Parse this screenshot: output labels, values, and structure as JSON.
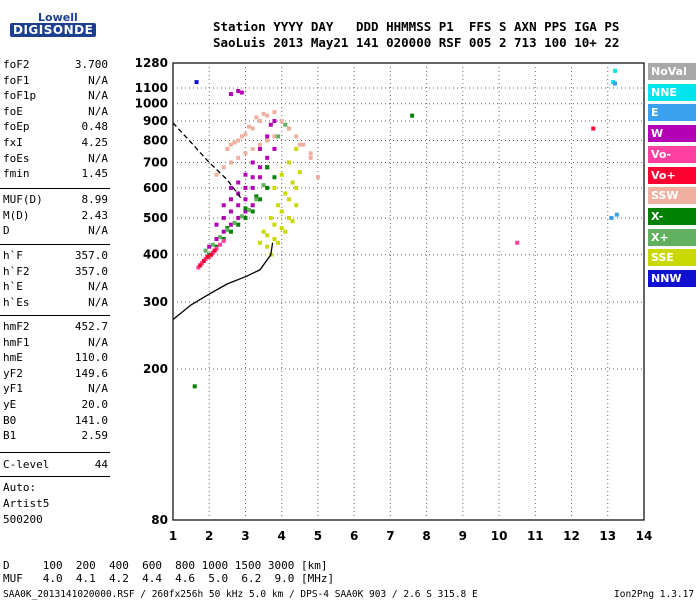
{
  "logo": {
    "line1": "Lowell",
    "line2": "DIGISONDE"
  },
  "header": {
    "line1": "Station YYYY DAY   DDD HHMMSS P1  FFS S AXN PPS IGA PS",
    "line2": "SaoLuis 2013 May21 141 020000 RSF 005 2 713 100 10+ 22"
  },
  "params_group1": [
    {
      "name": "foF2",
      "value": "3.700"
    },
    {
      "name": "foF1",
      "value": "N/A"
    },
    {
      "name": "foF1p",
      "value": "N/A"
    },
    {
      "name": "foE",
      "value": "N/A"
    },
    {
      "name": "foEp",
      "value": "0.48"
    },
    {
      "name": "fxI",
      "value": "4.25"
    },
    {
      "name": "foEs",
      "value": "N/A"
    },
    {
      "name": "fmin",
      "value": "1.45"
    }
  ],
  "params_group2": [
    {
      "name": "MUF(D)",
      "value": "8.99"
    },
    {
      "name": "M(D)",
      "value": "2.43"
    },
    {
      "name": "D",
      "value": "N/A"
    }
  ],
  "params_group3": [
    {
      "name": "h`F",
      "value": "357.0"
    },
    {
      "name": "h`F2",
      "value": "357.0"
    },
    {
      "name": "h`E",
      "value": "N/A"
    },
    {
      "name": "h`Es",
      "value": "N/A"
    }
  ],
  "params_group4": [
    {
      "name": "hmF2",
      "value": "452.7"
    },
    {
      "name": "hmF1",
      "value": "N/A"
    },
    {
      "name": "hmE",
      "value": "110.0"
    },
    {
      "name": "yF2",
      "value": "149.6"
    },
    {
      "name": "yF1",
      "value": "N/A"
    },
    {
      "name": "yE",
      "value": "20.0"
    },
    {
      "name": "B0",
      "value": "141.0"
    },
    {
      "name": "B1",
      "value": "2.59"
    }
  ],
  "params_group5": [
    {
      "name": "C-level",
      "value": "44"
    }
  ],
  "autoscaling": {
    "line1": "Auto:",
    "line2": "Artist5",
    "line3": "500200"
  },
  "legend": [
    {
      "label": "NoVal",
      "color": "#a8a8a8"
    },
    {
      "label": "NNE",
      "color": "#00e5ee"
    },
    {
      "label": "E",
      "color": "#3aa0f0"
    },
    {
      "label": "W",
      "color": "#b400b4"
    },
    {
      "label": "Vo-",
      "color": "#ff40a0"
    },
    {
      "label": "Vo+",
      "color": "#ff0030"
    },
    {
      "label": "SSW",
      "color": "#f0b0a0"
    },
    {
      "label": "X-",
      "color": "#008000"
    },
    {
      "label": "X+",
      "color": "#60b060"
    },
    {
      "label": "SSE",
      "color": "#c8d800"
    },
    {
      "label": "NNW",
      "color": "#1010d0"
    }
  ],
  "chart_data": {
    "type": "scatter",
    "title": "",
    "xlabel": "",
    "ylabel": "",
    "xlim": [
      1,
      14
    ],
    "ylim": [
      80,
      1280
    ],
    "x_ticks": [
      1,
      2,
      3,
      4,
      5,
      6,
      7,
      8,
      9,
      10,
      11,
      12,
      13,
      14
    ],
    "y_ticks": [
      80,
      200,
      300,
      400,
      500,
      600,
      700,
      800,
      900,
      1000,
      1100,
      1280
    ],
    "scale": "log",
    "curves": [
      {
        "name": "profile",
        "style": "solid",
        "points": [
          [
            1,
            270
          ],
          [
            1.5,
            295
          ],
          [
            2,
            315
          ],
          [
            2.5,
            335
          ],
          [
            3,
            350
          ],
          [
            3.4,
            365
          ],
          [
            3.7,
            400
          ],
          [
            3.75,
            430
          ]
        ]
      },
      {
        "name": "MUF",
        "style": "dashed",
        "points": [
          [
            1,
            890
          ],
          [
            1.5,
            790
          ],
          [
            2,
            700
          ],
          [
            2.5,
            630
          ],
          [
            2.9,
            560
          ]
        ]
      }
    ],
    "traces": [
      {
        "series": "SSW",
        "x": [
          2.6,
          2.8,
          3.0,
          3.2,
          3.4,
          3.6,
          3.8,
          4.0,
          4.2,
          4.4,
          4.6,
          4.8,
          2.5,
          2.7,
          2.9,
          3.1,
          3.3,
          3.5,
          2.2,
          2.4,
          2.6,
          2.8,
          3.0,
          3.2,
          3.4,
          3.6,
          3.8,
          4.2,
          4.5,
          4.8,
          5.0
        ],
        "y": [
          780,
          800,
          830,
          860,
          900,
          930,
          950,
          900,
          860,
          820,
          780,
          740,
          760,
          790,
          820,
          870,
          920,
          940,
          650,
          680,
          700,
          720,
          740,
          760,
          780,
          800,
          820,
          860,
          780,
          720,
          640
        ]
      },
      {
        "series": "W",
        "x": [
          2.6,
          2.8,
          3.0,
          3.2,
          3.4,
          3.6,
          3.7,
          3.8,
          2.4,
          2.6,
          2.8,
          3.0,
          3.2,
          3.4,
          3.6,
          3.8,
          2.2,
          2.4,
          2.6,
          2.8,
          3.0,
          3.2,
          3.4,
          3.6,
          2.0,
          2.2,
          2.4,
          2.6,
          2.8,
          3.0,
          3.2,
          2.6,
          2.8,
          2.9
        ],
        "y": [
          600,
          620,
          650,
          700,
          760,
          820,
          880,
          900,
          540,
          560,
          580,
          600,
          640,
          680,
          720,
          760,
          480,
          500,
          520,
          540,
          560,
          600,
          640,
          680,
          420,
          440,
          460,
          480,
          500,
          520,
          540,
          1060,
          1080,
          1070
        ]
      },
      {
        "series": "SSE",
        "x": [
          3.4,
          3.6,
          3.8,
          4.0,
          4.2,
          4.4,
          3.5,
          3.7,
          3.9,
          4.1,
          4.3,
          4.5,
          3.6,
          3.8,
          4.0,
          4.2,
          4.4,
          3.7,
          3.9,
          4.1,
          4.3,
          3.8,
          4.0,
          4.2,
          4.4
        ],
        "y": [
          430,
          450,
          480,
          520,
          560,
          600,
          460,
          500,
          540,
          580,
          620,
          660,
          420,
          440,
          470,
          500,
          540,
          400,
          430,
          460,
          490,
          600,
          650,
          700,
          760
        ]
      },
      {
        "series": "X-",
        "x": [
          2.0,
          2.2,
          2.4,
          2.6,
          2.8,
          3.0,
          3.2,
          3.4,
          3.6,
          3.8,
          2.5,
          3.0,
          3.3,
          3.6,
          1.6,
          7.6
        ],
        "y": [
          400,
          420,
          440,
          460,
          480,
          500,
          520,
          560,
          600,
          640,
          470,
          530,
          570,
          680,
          180,
          930
        ]
      },
      {
        "series": "X+",
        "x": [
          1.9,
          2.1,
          2.3,
          2.5,
          2.7,
          2.9,
          3.1,
          3.3,
          3.5,
          3.9,
          4.1
        ],
        "y": [
          410,
          425,
          445,
          465,
          485,
          505,
          525,
          560,
          610,
          820,
          880
        ]
      },
      {
        "series": "Vo-",
        "x": [
          1.7,
          1.8,
          1.9,
          2.0,
          2.1,
          2.2,
          2.3,
          2.4,
          10.5
        ],
        "y": [
          370,
          380,
          390,
          395,
          405,
          415,
          425,
          435,
          430
        ]
      },
      {
        "series": "Vo+",
        "x": [
          1.75,
          1.85,
          1.95,
          2.05,
          2.15,
          12.6
        ],
        "y": [
          375,
          385,
          395,
          400,
          410,
          860
        ]
      },
      {
        "series": "NNE",
        "x": [
          13.2,
          13.15
        ],
        "y": [
          1220,
          1140
        ]
      },
      {
        "series": "E",
        "x": [
          13.2,
          13.25,
          13.1
        ],
        "y": [
          1130,
          510,
          500
        ]
      },
      {
        "series": "NNW",
        "x": [
          1.65
        ],
        "y": [
          1140
        ]
      }
    ]
  },
  "footer": {
    "line1": "D     100  200  400  600  800 1000 1500 3000 [km]",
    "line2": "MUF   4.0  4.1  4.2  4.4  4.6  5.0  6.2  9.0 [MHz]",
    "line3": "SAA0K_2013141020000.RSF / 260fx256h 50 kHz 5.0 km / DPS-4 SAA0K 903 / 2.6 S 315.8 E",
    "version": "Ion2Png 1.3.17"
  }
}
